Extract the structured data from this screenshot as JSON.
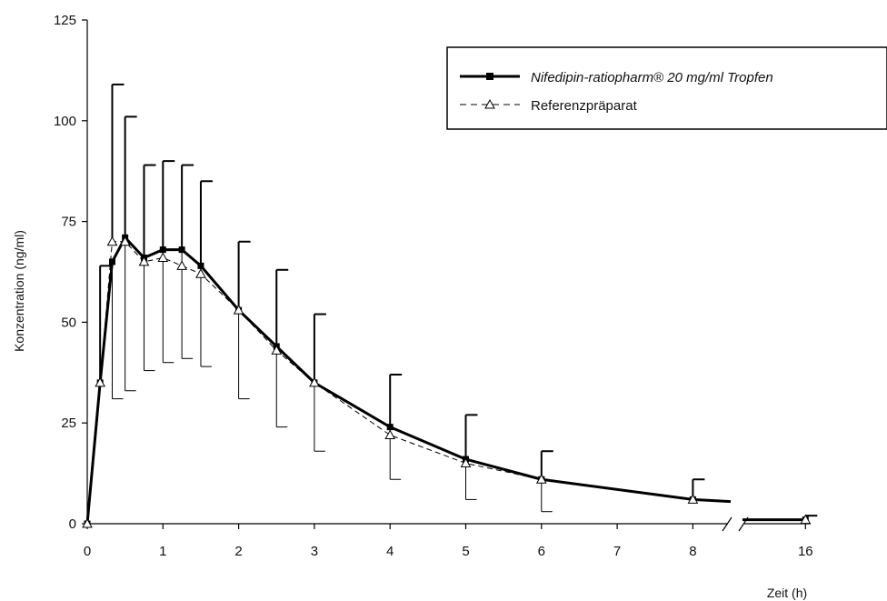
{
  "chart_data": {
    "type": "line",
    "title": "",
    "xlabel": "Zeit (h)",
    "ylabel": "Konzentration (ng/ml)",
    "ylim": [
      0,
      125
    ],
    "xlim": [
      0,
      16
    ],
    "x_axis_break": [
      8.5,
      15.7
    ],
    "yticks": [
      0,
      25,
      50,
      75,
      100,
      125
    ],
    "xticks": [
      0,
      1,
      2,
      3,
      4,
      5,
      6,
      7,
      8,
      16
    ],
    "legend_position": "top-right",
    "series": [
      {
        "name": "Nifedipin-ratiopharm® 20 mg/ml Tropfen",
        "style": "solid",
        "marker": "square-filled",
        "color": "#000000",
        "x": [
          0,
          0.17,
          0.33,
          0.5,
          0.75,
          1,
          1.25,
          1.5,
          2,
          2.5,
          3,
          4,
          5,
          6,
          8,
          8.5,
          15.7,
          16
        ],
        "y": [
          0,
          35,
          65,
          71,
          66,
          68,
          68,
          64,
          53,
          44,
          35,
          24,
          16,
          11,
          6,
          5.5,
          1,
          1
        ],
        "error_upper": [
          0,
          64,
          0,
          101,
          89,
          90,
          89,
          85,
          70,
          63,
          52,
          37,
          27,
          18,
          11,
          null,
          null,
          2
        ],
        "error_indices": [
          1,
          3,
          4,
          5,
          6,
          7,
          8,
          9,
          10,
          11,
          12,
          13,
          14,
          17
        ],
        "error_lower": [
          0,
          0,
          31,
          33,
          38,
          40,
          41,
          39,
          31,
          24,
          18,
          11,
          6,
          3,
          0,
          null,
          null,
          0
        ],
        "error_lower_indices": [
          2,
          3,
          4,
          5,
          6,
          7,
          8,
          9,
          10,
          11,
          12,
          13
        ]
      },
      {
        "name": "Referenzpräparat",
        "style": "dashed",
        "marker": "triangle-open",
        "color": "#000000",
        "x": [
          0,
          0.17,
          0.33,
          0.5,
          0.75,
          1,
          1.25,
          1.5,
          2,
          2.5,
          3,
          4,
          5,
          6,
          8,
          16
        ],
        "y": [
          0,
          35,
          70,
          70,
          65,
          66,
          64,
          62,
          53,
          43,
          35,
          22,
          15,
          11,
          6,
          1
        ],
        "error_upper": [
          null,
          null,
          109,
          null,
          null,
          null,
          null,
          null,
          null,
          null,
          null,
          null,
          null,
          null,
          null,
          null
        ],
        "error_indices": [
          2
        ]
      }
    ]
  }
}
